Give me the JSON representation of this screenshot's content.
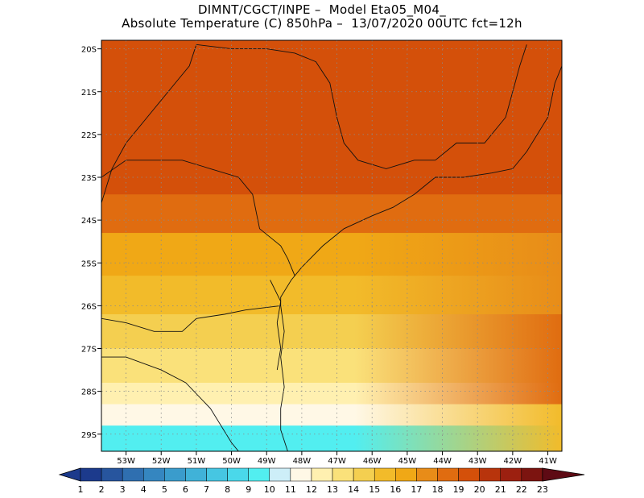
{
  "title": {
    "line1": "DIMNT/CGCT/INPE –  Model Eta05_M04_",
    "line2": "Absolute Temperature (C) 850hPa –  13/07/2020 00UTC fct=12h"
  },
  "map": {
    "lat_labels": [
      "20S",
      "21S",
      "22S",
      "23S",
      "24S",
      "25S",
      "26S",
      "27S",
      "28S",
      "29S"
    ],
    "lat_values": [
      -20,
      -21,
      -22,
      -23,
      -24,
      -25,
      -26,
      -27,
      -28,
      -29
    ],
    "lon_labels": [
      "53W",
      "52W",
      "51W",
      "50W",
      "49W",
      "48W",
      "47W",
      "46W",
      "45W",
      "44W",
      "43W",
      "42W",
      "41W"
    ],
    "lon_values": [
      -53,
      -52,
      -51,
      -50,
      -49,
      -48,
      -47,
      -46,
      -45,
      -44,
      -43,
      -42,
      -41
    ],
    "extent": {
      "lat_min": -29.4,
      "lat_max": -19.8,
      "lon_min": -53.7,
      "lon_max": -40.6
    },
    "temperature_bands": [
      {
        "lat_from": -19.8,
        "lat_to": -23.4,
        "temp_c": 19
      },
      {
        "lat_from": -23.4,
        "lat_to": -24.3,
        "temp_c": 18
      },
      {
        "lat_from": -24.3,
        "lat_to": -25.3,
        "temp_c": 16
      },
      {
        "lat_from": -25.3,
        "lat_to": -26.2,
        "temp_c": 15
      },
      {
        "lat_from": -26.2,
        "lat_to": -27.0,
        "temp_c": 14
      },
      {
        "lat_from": -27.0,
        "lat_to": -27.8,
        "temp_c": 13
      },
      {
        "lat_from": -27.8,
        "lat_to": -28.3,
        "temp_c": 12
      },
      {
        "lat_from": -28.3,
        "lat_to": -28.8,
        "temp_c": 11
      },
      {
        "lat_from": -28.8,
        "lat_to": -29.4,
        "temp_c": 9
      }
    ],
    "east_gradient": [
      {
        "lat_from": -19.8,
        "lat_to": -23.0,
        "temp_c": 17
      },
      {
        "lat_from": -23.0,
        "lat_to": -26.0,
        "temp_c": 17
      },
      {
        "lat_from": -26.0,
        "lat_to": -28.0,
        "temp_c": 18
      },
      {
        "lat_from": -28.0,
        "lat_to": -29.4,
        "temp_c": 15
      }
    ]
  },
  "colorbar": {
    "labels": [
      "1",
      "2",
      "3",
      "4",
      "5",
      "6",
      "7",
      "8",
      "9",
      "10",
      "11",
      "12",
      "13",
      "14",
      "15",
      "16",
      "17",
      "18",
      "19",
      "20",
      "21",
      "22",
      "23"
    ],
    "colors": [
      "#1c3a8c",
      "#27559e",
      "#2f6fb0",
      "#3586c0",
      "#3a9ccc",
      "#40b2d8",
      "#46c6e2",
      "#4ad8ea",
      "#52eef0",
      "#cdeef8",
      "#fff8e6",
      "#fff0b0",
      "#fae17a",
      "#f4cf50",
      "#f2bb2a",
      "#f0a816",
      "#e88c18",
      "#e06c10",
      "#d4500a",
      "#b8340c",
      "#9c2010",
      "#7c1410",
      "#5e0a14"
    ]
  }
}
